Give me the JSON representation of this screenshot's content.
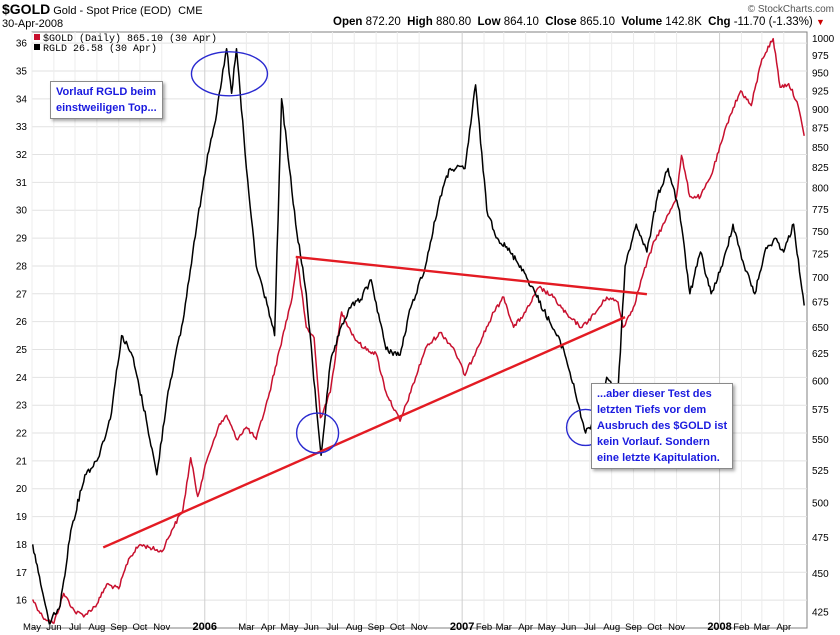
{
  "header": {
    "ticker": "$GOLD",
    "description": "Gold - Spot Price (EOD)",
    "exchange": "CME",
    "date": "30-Apr-2008",
    "ohlc": {
      "open_label": "Open",
      "open": "872.20",
      "high_label": "High",
      "high": "880.80",
      "low_label": "Low",
      "low": "864.10",
      "close_label": "Close",
      "close": "865.10",
      "volume_label": "Volume",
      "volume": "142.8K",
      "chg_label": "Chg",
      "chg": "-11.70 (-1.33%)"
    },
    "credit": "© StockCharts.com"
  },
  "annotations": {
    "left_note": [
      "Vorlauf RGLD beim",
      "einstweiligen Top..."
    ],
    "right_note": [
      "...aber dieser Test des",
      "letzten Tiefs vor dem",
      "Ausbruch des $GOLD ist",
      "kein Vorlauf. Sondern",
      "eine letzte Kapitulation."
    ]
  },
  "chart_data": {
    "type": "line",
    "legend": [
      {
        "label": "$GOLD (Daily) 865.10 (30 Apr)",
        "color": "#c8102e"
      },
      {
        "label": "RGLD 26.58 (30 Apr)",
        "color": "#000000"
      }
    ],
    "legend_position": "top-left",
    "x_tick_labels": [
      "May",
      "Jun",
      "Jul",
      "Aug",
      "Sep",
      "Oct",
      "Nov",
      "2006",
      "Mar",
      "Apr",
      "May",
      "Jun",
      "Jul",
      "Aug",
      "Sep",
      "Oct",
      "Nov",
      "2007",
      "Feb",
      "Mar",
      "Apr",
      "May",
      "Jun",
      "Jul",
      "Aug",
      "Sep",
      "Oct",
      "Nov",
      "2008",
      "Feb",
      "Mar",
      "Apr"
    ],
    "left_axis": {
      "series": "RGLD",
      "min": 15,
      "max": 36.4,
      "ticks": [
        16,
        17,
        18,
        19,
        20,
        21,
        22,
        23,
        24,
        25,
        26,
        27,
        28,
        29,
        30,
        31,
        32,
        33,
        34,
        35,
        36
      ]
    },
    "right_axis": {
      "series": "$GOLD",
      "scale": "log",
      "min": 415,
      "max": 1010,
      "ticks": [
        425,
        450,
        475,
        500,
        525,
        550,
        575,
        600,
        625,
        650,
        675,
        700,
        725,
        750,
        775,
        800,
        825,
        850,
        875,
        900,
        925,
        950,
        975,
        1000
      ]
    },
    "grid": true,
    "series": [
      {
        "name": "$GOLD",
        "color": "#c8102e",
        "axis": "right",
        "points": [
          [
            "2005-05-02",
            433
          ],
          [
            "2005-05-16",
            422
          ],
          [
            "2005-06-01",
            418
          ],
          [
            "2005-06-15",
            437
          ],
          [
            "2005-07-01",
            425
          ],
          [
            "2005-07-15",
            423
          ],
          [
            "2005-08-01",
            430
          ],
          [
            "2005-08-15",
            443
          ],
          [
            "2005-09-01",
            440
          ],
          [
            "2005-09-15",
            460
          ],
          [
            "2005-10-01",
            470
          ],
          [
            "2005-10-15",
            468
          ],
          [
            "2005-11-01",
            465
          ],
          [
            "2005-11-15",
            480
          ],
          [
            "2005-12-01",
            495
          ],
          [
            "2005-12-12",
            535
          ],
          [
            "2005-12-22",
            505
          ],
          [
            "2006-01-05",
            535
          ],
          [
            "2006-01-20",
            560
          ],
          [
            "2006-02-01",
            570
          ],
          [
            "2006-02-15",
            550
          ],
          [
            "2006-03-01",
            560
          ],
          [
            "2006-03-15",
            550
          ],
          [
            "2006-04-01",
            585
          ],
          [
            "2006-04-21",
            640
          ],
          [
            "2006-05-05",
            680
          ],
          [
            "2006-05-12",
            720
          ],
          [
            "2006-05-25",
            650
          ],
          [
            "2006-06-05",
            640
          ],
          [
            "2006-06-14",
            568
          ],
          [
            "2006-06-28",
            590
          ],
          [
            "2006-07-14",
            665
          ],
          [
            "2006-08-01",
            640
          ],
          [
            "2006-08-15",
            630
          ],
          [
            "2006-09-01",
            625
          ],
          [
            "2006-09-15",
            590
          ],
          [
            "2006-10-05",
            565
          ],
          [
            "2006-10-20",
            590
          ],
          [
            "2006-11-10",
            630
          ],
          [
            "2006-12-01",
            645
          ],
          [
            "2006-12-20",
            630
          ],
          [
            "2007-01-05",
            605
          ],
          [
            "2007-01-22",
            630
          ],
          [
            "2007-02-15",
            665
          ],
          [
            "2007-03-01",
            680
          ],
          [
            "2007-03-15",
            650
          ],
          [
            "2007-04-01",
            665
          ],
          [
            "2007-04-20",
            690
          ],
          [
            "2007-05-10",
            680
          ],
          [
            "2007-06-01",
            660
          ],
          [
            "2007-06-20",
            650
          ],
          [
            "2007-07-10",
            665
          ],
          [
            "2007-07-25",
            680
          ],
          [
            "2007-08-10",
            675
          ],
          [
            "2007-08-17",
            650
          ],
          [
            "2007-09-01",
            670
          ],
          [
            "2007-09-15",
            705
          ],
          [
            "2007-10-01",
            740
          ],
          [
            "2007-10-15",
            760
          ],
          [
            "2007-11-01",
            790
          ],
          [
            "2007-11-08",
            840
          ],
          [
            "2007-11-20",
            790
          ],
          [
            "2007-12-05",
            790
          ],
          [
            "2007-12-20",
            815
          ],
          [
            "2008-01-05",
            860
          ],
          [
            "2008-01-15",
            890
          ],
          [
            "2008-01-31",
            925
          ],
          [
            "2008-02-15",
            905
          ],
          [
            "2008-03-01",
            970
          ],
          [
            "2008-03-17",
            1000
          ],
          [
            "2008-03-27",
            930
          ],
          [
            "2008-04-08",
            935
          ],
          [
            "2008-04-20",
            910
          ],
          [
            "2008-04-30",
            865
          ]
        ]
      },
      {
        "name": "RGLD",
        "color": "#000000",
        "axis": "left",
        "points": [
          [
            "2005-05-02",
            18.0
          ],
          [
            "2005-05-10",
            17.0
          ],
          [
            "2005-05-25",
            15.2
          ],
          [
            "2005-06-10",
            15.8
          ],
          [
            "2005-06-25",
            18.5
          ],
          [
            "2005-07-15",
            20.5
          ],
          [
            "2005-08-01",
            21.0
          ],
          [
            "2005-08-20",
            22.5
          ],
          [
            "2005-09-05",
            25.5
          ],
          [
            "2005-09-20",
            24.8
          ],
          [
            "2005-10-10",
            22.5
          ],
          [
            "2005-10-25",
            20.5
          ],
          [
            "2005-11-10",
            23.5
          ],
          [
            "2005-12-01",
            26.0
          ],
          [
            "2005-12-15",
            28.5
          ],
          [
            "2006-01-05",
            32.0
          ],
          [
            "2006-01-18",
            33.5
          ],
          [
            "2006-02-01",
            35.8
          ],
          [
            "2006-02-08",
            34.2
          ],
          [
            "2006-02-15",
            35.8
          ],
          [
            "2006-03-01",
            31.5
          ],
          [
            "2006-03-15",
            28.0
          ],
          [
            "2006-04-01",
            26.5
          ],
          [
            "2006-04-10",
            25.5
          ],
          [
            "2006-04-20",
            34.0
          ],
          [
            "2006-05-01",
            31.5
          ],
          [
            "2006-05-10",
            29.5
          ],
          [
            "2006-05-25",
            27.0
          ],
          [
            "2006-06-08",
            23.0
          ],
          [
            "2006-06-15",
            21.2
          ],
          [
            "2006-06-28",
            24.5
          ],
          [
            "2006-07-10",
            25.5
          ],
          [
            "2006-07-25",
            26.5
          ],
          [
            "2006-08-10",
            26.8
          ],
          [
            "2006-08-25",
            27.5
          ],
          [
            "2006-09-15",
            25.0
          ],
          [
            "2006-10-05",
            24.8
          ],
          [
            "2006-10-20",
            26.5
          ],
          [
            "2006-11-10",
            28.0
          ],
          [
            "2006-12-01",
            30.5
          ],
          [
            "2006-12-15",
            31.5
          ],
          [
            "2007-01-05",
            31.5
          ],
          [
            "2007-01-20",
            34.5
          ],
          [
            "2007-02-05",
            30.0
          ],
          [
            "2007-02-20",
            29.0
          ],
          [
            "2007-03-10",
            28.5
          ],
          [
            "2007-03-25",
            28.0
          ],
          [
            "2007-04-15",
            27.0
          ],
          [
            "2007-05-05",
            26.0
          ],
          [
            "2007-05-25",
            25.0
          ],
          [
            "2007-06-10",
            23.5
          ],
          [
            "2007-06-25",
            22.0
          ],
          [
            "2007-07-10",
            22.5
          ],
          [
            "2007-07-25",
            24.0
          ],
          [
            "2007-08-10",
            23.5
          ],
          [
            "2007-08-20",
            28.0
          ],
          [
            "2007-09-05",
            29.5
          ],
          [
            "2007-09-20",
            28.5
          ],
          [
            "2007-10-05",
            30.5
          ],
          [
            "2007-10-20",
            31.5
          ],
          [
            "2007-11-05",
            30.0
          ],
          [
            "2007-11-20",
            27.0
          ],
          [
            "2007-12-05",
            28.5
          ],
          [
            "2007-12-20",
            27.0
          ],
          [
            "2008-01-05",
            28.0
          ],
          [
            "2008-01-20",
            29.5
          ],
          [
            "2008-02-05",
            28.0
          ],
          [
            "2008-02-20",
            27.0
          ],
          [
            "2008-03-05",
            28.5
          ],
          [
            "2008-03-20",
            29.0
          ],
          [
            "2008-04-01",
            28.5
          ],
          [
            "2008-04-15",
            29.5
          ],
          [
            "2008-04-30",
            26.58
          ]
        ]
      }
    ],
    "trendlines": [
      {
        "color": "#e31b23",
        "points": [
          [
            "2005-08-10",
            468
          ],
          [
            "2007-08-20",
            660
          ]
        ]
      },
      {
        "color": "#e31b23",
        "points": [
          [
            "2006-05-10",
            722
          ],
          [
            "2007-09-20",
            683
          ]
        ]
      }
    ],
    "circles": [
      {
        "center": [
          "2006-02-05",
          34.9
        ],
        "axis": "left"
      },
      {
        "center": [
          "2006-06-10",
          22.0
        ],
        "axis": "left"
      },
      {
        "center": [
          "2007-06-25",
          22.2
        ],
        "axis": "left"
      }
    ]
  }
}
